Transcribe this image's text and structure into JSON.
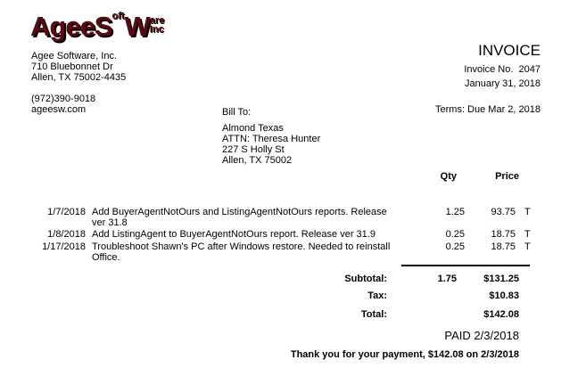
{
  "logo": {
    "text": "AgeeSoft Ware Inc",
    "parts": [
      "AgeeS",
      "oft",
      "W",
      "are",
      "Inc"
    ]
  },
  "company": {
    "name": "Agee Software, Inc.",
    "address1": "710 Bluebonnet Dr",
    "address2": "Allen, TX  75002-4435",
    "phone": "(972)390-9018",
    "web": "ageesw.com"
  },
  "invoice": {
    "title": "INVOICE",
    "number_label": "Invoice No.",
    "number": "2047",
    "date": "January  31,  2018",
    "terms": "Terms:  Due Mar 2, 2018"
  },
  "bill_to": {
    "label": "Bill To:",
    "name": "Almond Texas",
    "attn": "ATTN:  Theresa Hunter",
    "address1": "227 S Holly St",
    "address2": "Allen, TX  75002"
  },
  "columns": {
    "qty": "Qty",
    "price": "Price"
  },
  "items": [
    {
      "date": "1/7/2018",
      "description": "Add BuyerAgentNotOurs and ListingAgentNotOurs reports. Release ver 31.8",
      "qty": "1.25",
      "price": "93.75",
      "tax": "T"
    },
    {
      "date": "1/8/2018",
      "description": "Add ListingAgent to BuyerAgentNotOurs report. Release ver 31.9",
      "qty": "0.25",
      "price": "18.75",
      "tax": "T"
    },
    {
      "date": "1/17/2018",
      "description": "Troubleshoot Shawn's PC after Windows restore. Needed to reinstall Office.",
      "qty": "0.25",
      "price": "18.75",
      "tax": "T"
    }
  ],
  "totals": {
    "subtotal_label": "Subtotal:",
    "subtotal_qty": "1.75",
    "subtotal": "$131.25",
    "tax_label": "Tax:",
    "tax": "$10.83",
    "total_label": "Total:",
    "total": "$142.08"
  },
  "paid": "PAID 2/3/2018",
  "thanks": "Thank you for your payment, $142.08 on 2/3/2018"
}
